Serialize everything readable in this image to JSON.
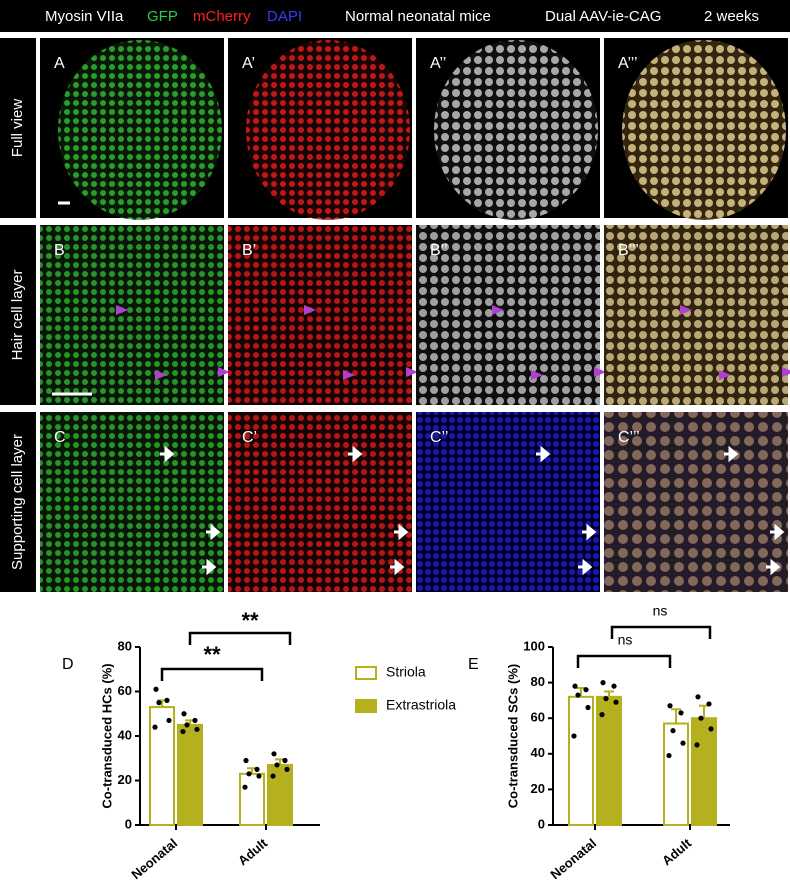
{
  "header": {
    "channels": [
      {
        "text": "Myosin VIIa",
        "color": "#ffffff"
      },
      {
        "text": "GFP",
        "color": "#2ecc40"
      },
      {
        "text": "mCherry",
        "color": "#ff2020"
      },
      {
        "text": "DAPI",
        "color": "#3a3aff"
      }
    ],
    "condition": "Normal neonatal mice",
    "vector": "Dual AAV-ie-CAG",
    "time": "2 weeks"
  },
  "rows": [
    "Full view",
    "Hair cell layer",
    "Supporting cell layer"
  ],
  "panels": [
    [
      "A",
      "A’",
      "A’’",
      "A’’’"
    ],
    [
      "B",
      "B’",
      "B’’",
      "B’’’"
    ],
    [
      "C",
      "C’",
      "C’’",
      "C’’’"
    ]
  ],
  "chart_data": [
    {
      "type": "bar",
      "panel_label": "D",
      "y_label": "Co-transduced HCs (%)",
      "categories": [
        "Neonatal",
        "Adult"
      ],
      "ylim": [
        0,
        80
      ],
      "yticks": [
        0,
        20,
        40,
        60,
        80
      ],
      "series": [
        {
          "name": "Striola",
          "color": "#b5b11e",
          "fill": "#ffffff",
          "values": [
            53,
            23
          ],
          "errors": [
            3,
            2.5
          ],
          "points": [
            [
              61,
              56,
              55,
              47,
              44
            ],
            [
              29,
              25,
              23,
              22,
              17
            ]
          ]
        },
        {
          "name": "Extrastriola",
          "color": "#b5b11e",
          "fill": "#b5b11e",
          "values": [
            45,
            27
          ],
          "errors": [
            2,
            2.5
          ],
          "points": [
            [
              50,
              47,
              45,
              43,
              42
            ],
            [
              32,
              29,
              27,
              25,
              22
            ]
          ]
        }
      ],
      "annotations": [
        "**",
        "**"
      ]
    },
    {
      "type": "bar",
      "panel_label": "E",
      "y_label": "Co-transduced SCs (%)",
      "categories": [
        "Neonatal",
        "Adult"
      ],
      "ylim": [
        0,
        100
      ],
      "yticks": [
        0,
        20,
        40,
        60,
        80,
        100
      ],
      "series": [
        {
          "color": "#b5b11e",
          "fill": "#ffffff",
          "values": [
            72,
            57
          ],
          "errors": [
            5,
            8
          ],
          "points": [
            [
              78,
              76,
              73,
              66,
              50
            ],
            [
              67,
              63,
              53,
              46,
              39
            ]
          ]
        },
        {
          "color": "#b5b11e",
          "fill": "#b5b11e",
          "values": [
            72,
            60
          ],
          "errors": [
            3,
            7
          ],
          "points": [
            [
              80,
              78,
              71,
              69,
              62
            ],
            [
              72,
              68,
              60,
              54,
              45
            ]
          ]
        }
      ],
      "annotations": [
        "ns",
        "ns"
      ]
    }
  ]
}
